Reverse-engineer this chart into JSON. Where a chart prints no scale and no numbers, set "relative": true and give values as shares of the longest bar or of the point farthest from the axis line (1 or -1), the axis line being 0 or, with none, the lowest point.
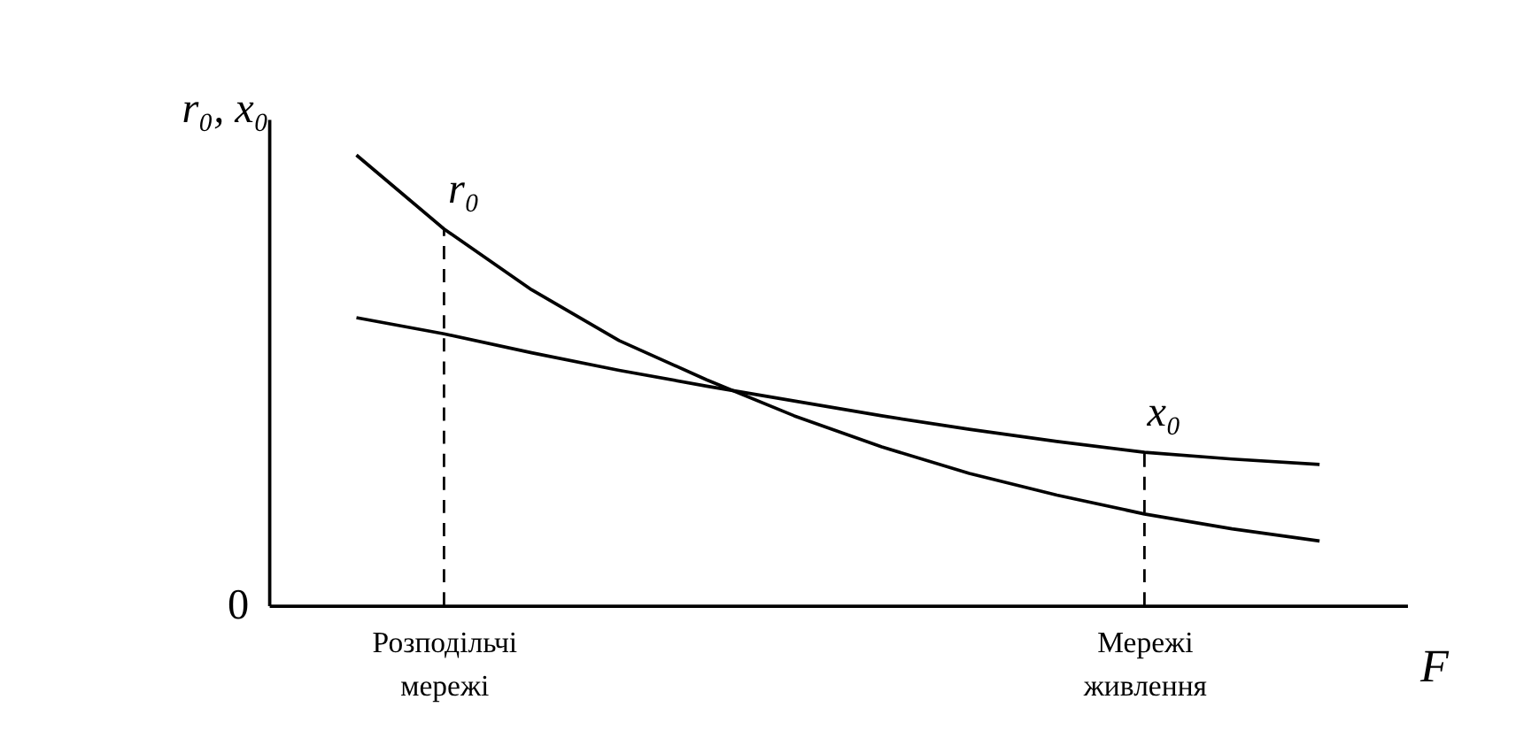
{
  "chart_data": {
    "type": "line",
    "relative": true,
    "xlabel": "F",
    "ylabel": "r₀, x₀",
    "tick_labels": "x",
    "grid": false,
    "marker": "none",
    "line_style": "solid",
    "categories": [
      null,
      null,
      "Розподільчі мережі",
      null,
      null,
      null,
      null,
      null,
      null,
      null,
      "Мережі живлення",
      null,
      null,
      null
    ],
    "series": [
      {
        "name": "r₀",
        "color": "#000000",
        "values": [
          null,
          1.0,
          0.836,
          0.701,
          0.588,
          0.501,
          0.421,
          0.352,
          0.293,
          0.245,
          0.203,
          0.17,
          0.143,
          null
        ]
      },
      {
        "name": "x₀",
        "color": "#000000",
        "values": [
          null,
          0.639,
          0.603,
          0.561,
          0.522,
          0.487,
          0.454,
          0.421,
          0.391,
          0.364,
          0.34,
          0.325,
          0.313,
          null
        ]
      }
    ],
    "ref_lines": [
      {
        "axis": "x",
        "value": "Розподільчі мережі",
        "color": "#000000",
        "line_style": "dashed"
      },
      {
        "axis": "x",
        "value": "Мережі живлення",
        "color": "#000000",
        "line_style": "dashed"
      }
    ],
    "annotations": [
      "0"
    ]
  }
}
